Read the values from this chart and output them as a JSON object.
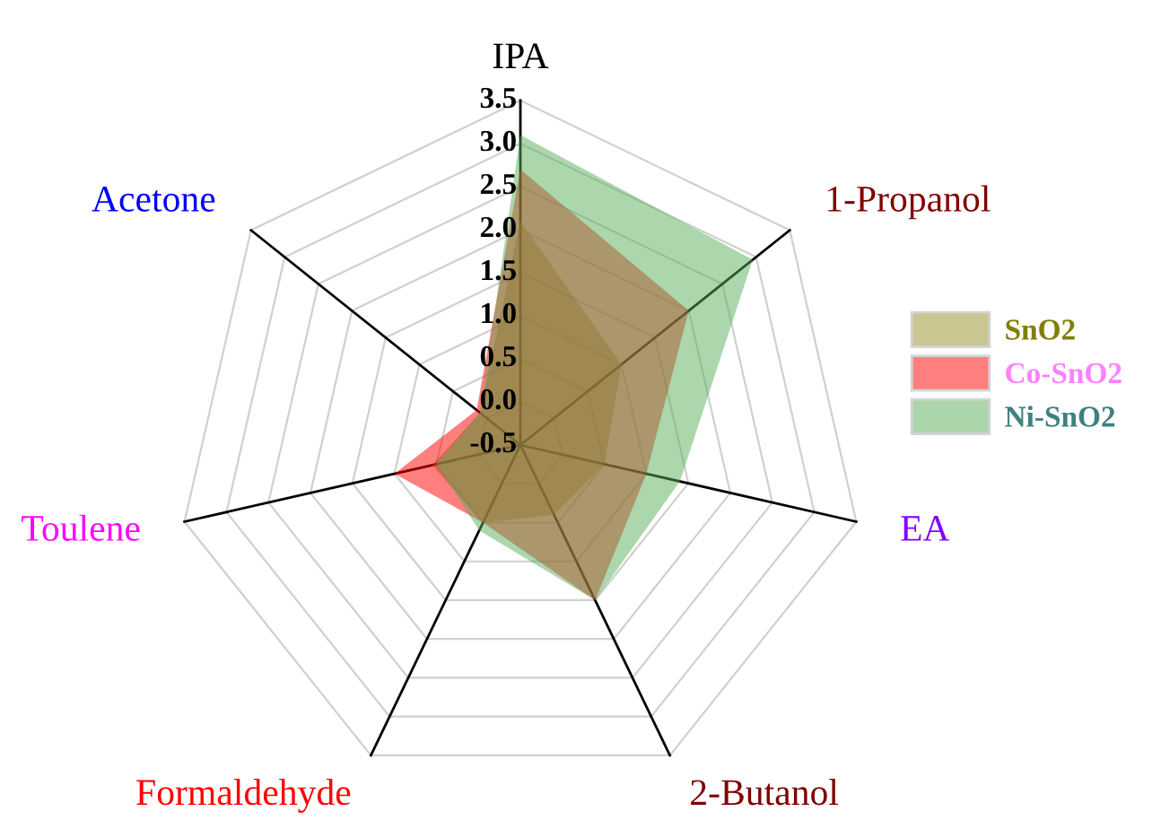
{
  "chart_data": {
    "type": "radar",
    "categories": [
      "IPA",
      "1-Propanol",
      "EA",
      "2-Butanol",
      "Formaldehyde",
      "Toulene",
      "Acetone"
    ],
    "series": [
      {
        "name": "SnO2",
        "color": "#948f28",
        "values": [
          2.1,
          1.0,
          0.5,
          0.4,
          0.5,
          0.55,
          0.1
        ]
      },
      {
        "name": "Co-SnO2",
        "color": "#ff0000",
        "values": [
          2.7,
          2.0,
          1.0,
          1.5,
          0.5,
          1.0,
          0.15
        ]
      },
      {
        "name": "Ni-SnO2",
        "color": "#5aad5a",
        "values": [
          3.1,
          2.95,
          1.4,
          1.5,
          0.6,
          0.5,
          0.1
        ]
      }
    ],
    "ylim": [
      -0.5,
      3.5
    ],
    "yticks": [
      -0.5,
      {
        "value": 0,
        "label": "0.0"
      },
      0.5,
      {
        "value": 1,
        "label": "1.0"
      },
      1.5,
      {
        "value": 2,
        "label": "2.0"
      },
      2.5,
      {
        "value": 3,
        "label": "3.0"
      },
      3.5
    ],
    "grid": true,
    "legend": "right"
  }
}
